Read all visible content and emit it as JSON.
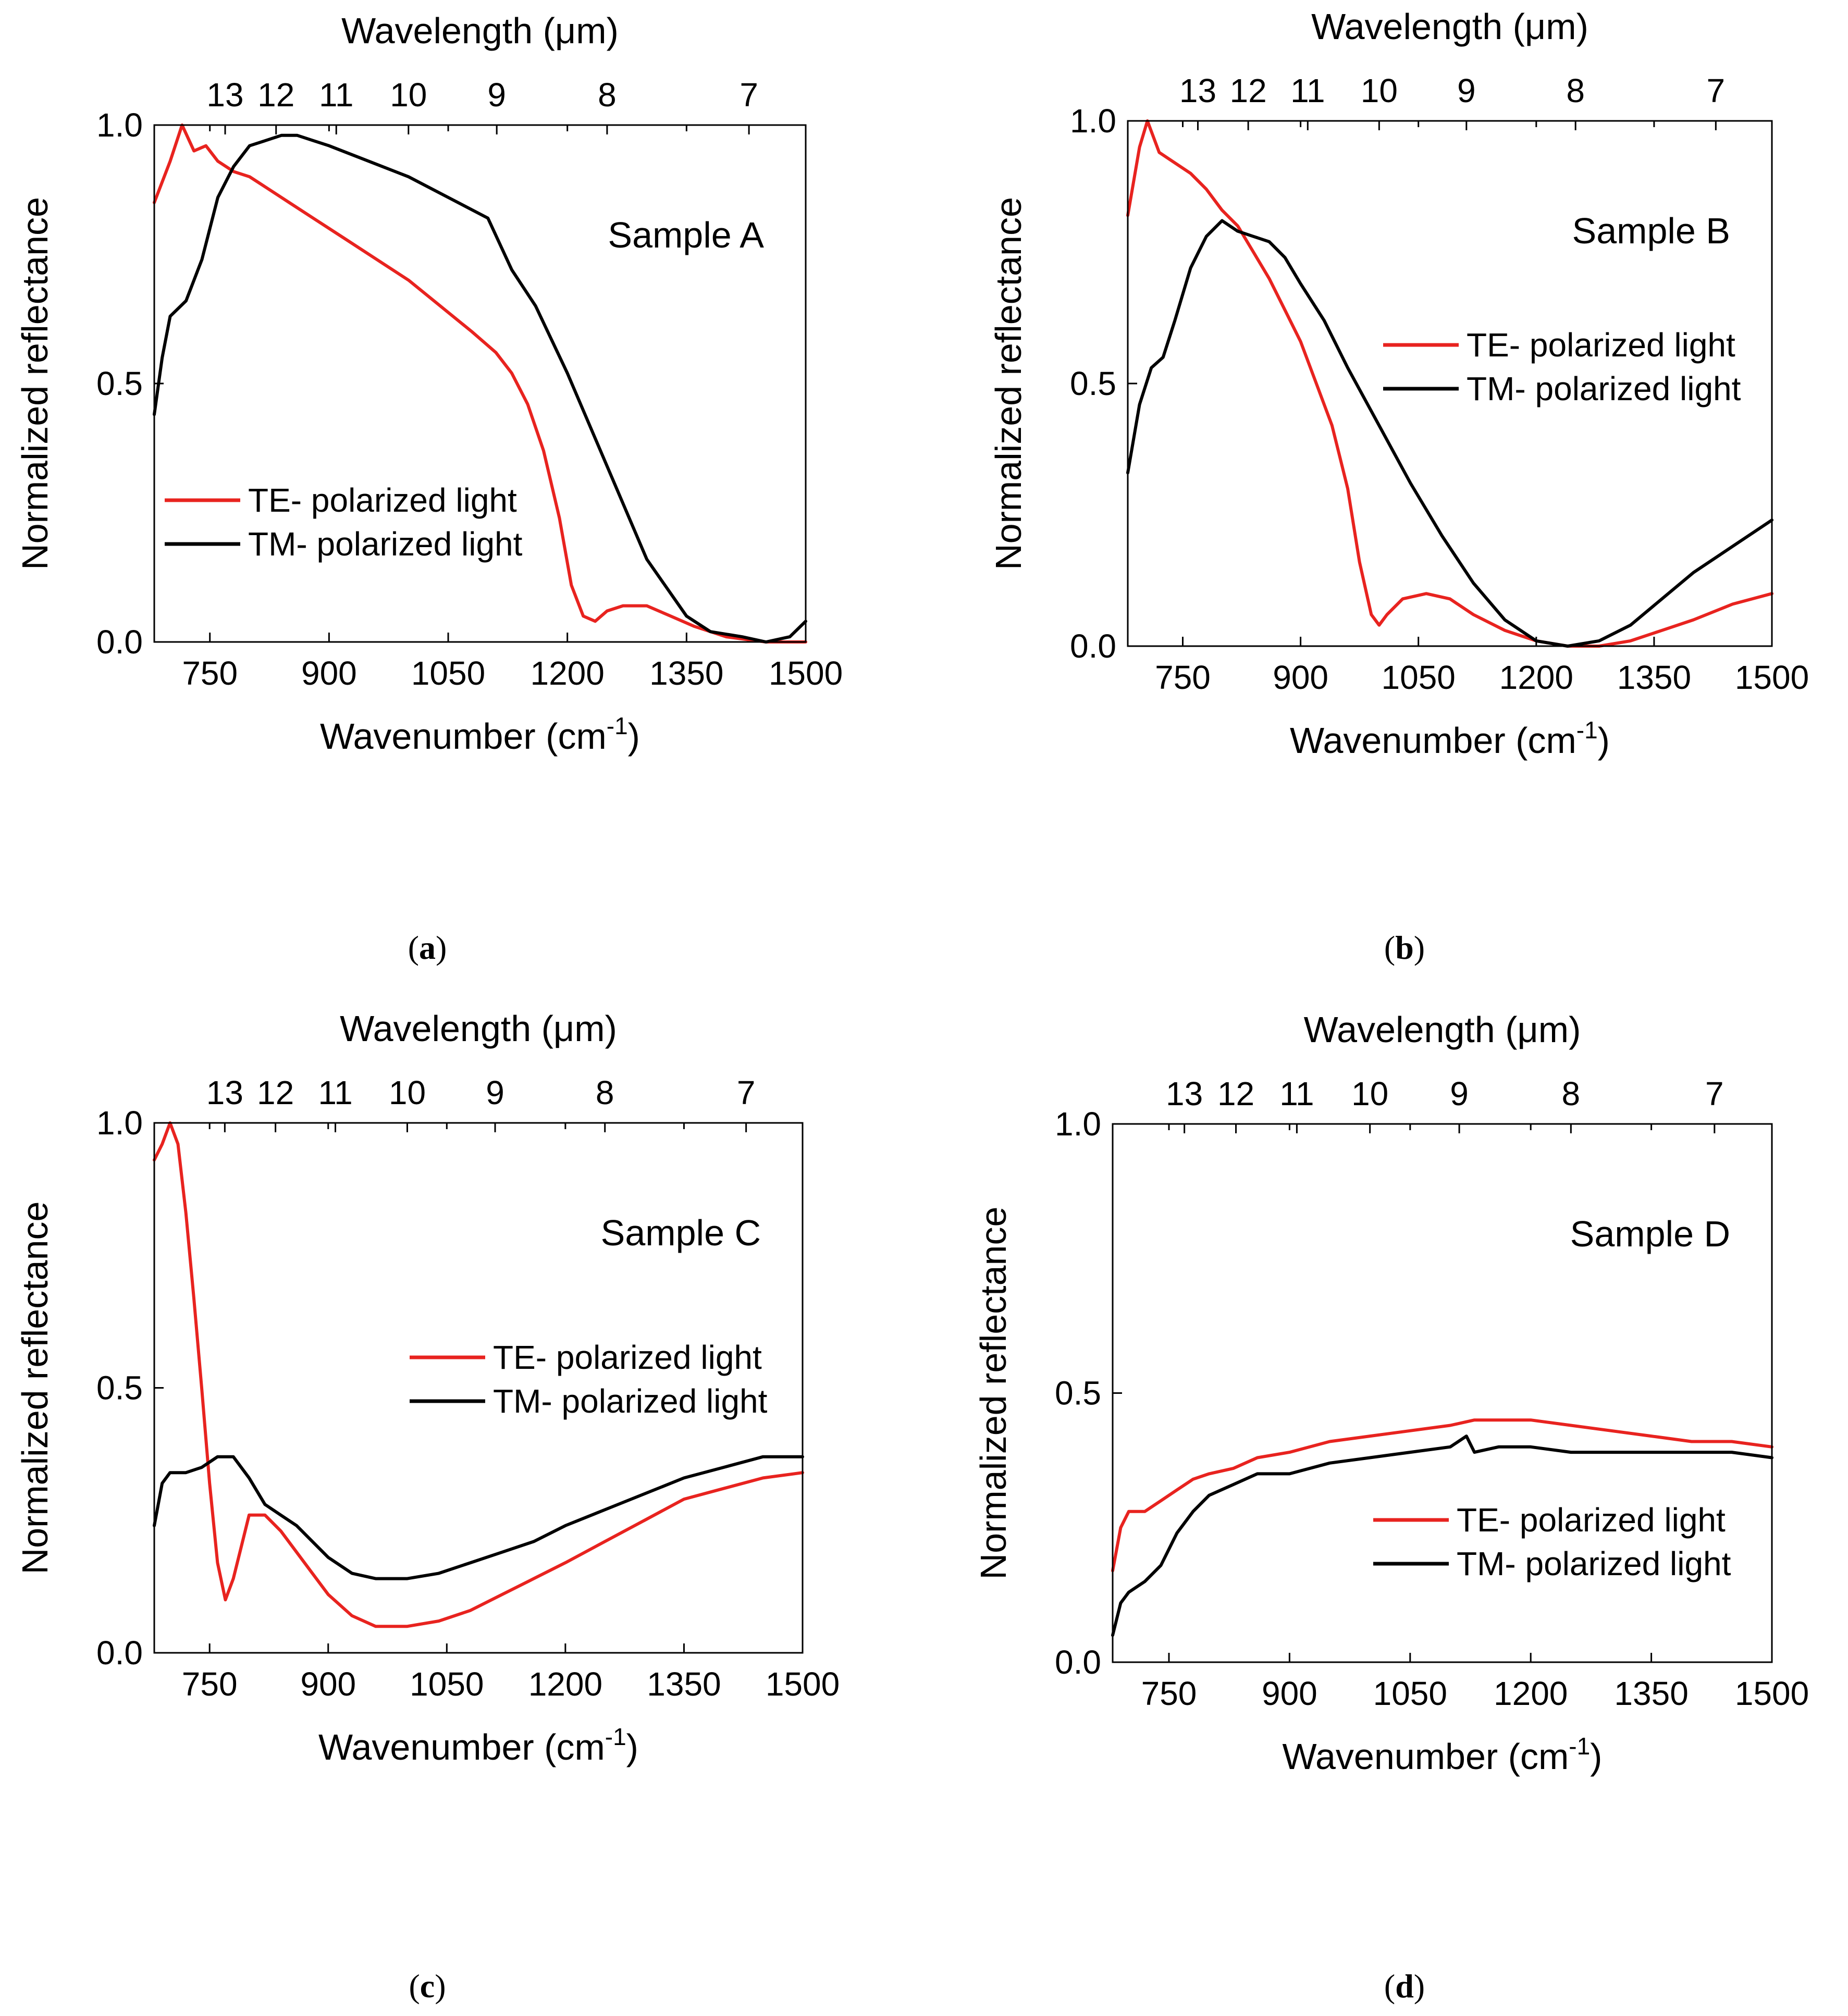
{
  "figure": {
    "captions": [
      {
        "paren_open": "(",
        "letter": "a",
        "paren_close": ")"
      },
      {
        "paren_open": "(",
        "letter": "b",
        "paren_close": ")"
      },
      {
        "paren_open": "(",
        "letter": "c",
        "paren_close": ")"
      },
      {
        "paren_open": "(",
        "letter": "d",
        "paren_close": ")"
      }
    ]
  },
  "chart_data": [
    {
      "type": "line",
      "panel": "a",
      "annotation": "Sample A",
      "xlabel": "Wavenumber (cm",
      "xlabel_sup": "-1",
      "xlabel_close": ")",
      "ylabel": "Normalized reflectance",
      "top_label": "Wavelength (μm)",
      "xlim": [
        680,
        1500
      ],
      "ylim": [
        0,
        1
      ],
      "xticks": [
        750,
        900,
        1050,
        1200,
        1350,
        1500
      ],
      "yticks": [
        "0.0",
        "0.5",
        "1.0"
      ],
      "top_ticks": [
        13,
        12,
        11,
        10,
        9,
        8,
        7
      ],
      "legend_position": "bottom-left",
      "series": [
        {
          "name": "TE- polarized light",
          "color": "#e8231f",
          "x": [
            680,
            700,
            715,
            730,
            745,
            760,
            780,
            800,
            820,
            850,
            880,
            920,
            960,
            1000,
            1040,
            1080,
            1110,
            1130,
            1150,
            1170,
            1190,
            1205,
            1220,
            1235,
            1250,
            1270,
            1300,
            1330,
            1360,
            1400,
            1450,
            1500
          ],
          "y": [
            0.85,
            0.93,
            1.0,
            0.95,
            0.96,
            0.93,
            0.91,
            0.9,
            0.88,
            0.85,
            0.82,
            0.78,
            0.74,
            0.7,
            0.65,
            0.6,
            0.56,
            0.52,
            0.46,
            0.37,
            0.24,
            0.11,
            0.05,
            0.04,
            0.06,
            0.07,
            0.07,
            0.05,
            0.03,
            0.01,
            0.0,
            0.0
          ]
        },
        {
          "name": "TM- polarized light",
          "color": "#000000",
          "x": [
            680,
            690,
            700,
            720,
            740,
            760,
            780,
            800,
            820,
            840,
            860,
            880,
            900,
            950,
            1000,
            1050,
            1100,
            1130,
            1160,
            1200,
            1250,
            1300,
            1350,
            1380,
            1420,
            1450,
            1480,
            1500
          ],
          "y": [
            0.44,
            0.55,
            0.63,
            0.66,
            0.74,
            0.86,
            0.92,
            0.96,
            0.97,
            0.98,
            0.98,
            0.97,
            0.96,
            0.93,
            0.9,
            0.86,
            0.82,
            0.72,
            0.65,
            0.52,
            0.34,
            0.16,
            0.05,
            0.02,
            0.01,
            0.0,
            0.01,
            0.04
          ]
        }
      ]
    },
    {
      "type": "line",
      "panel": "b",
      "annotation": "Sample B",
      "xlabel": "Wavenumber (cm",
      "xlabel_sup": "-1",
      "xlabel_close": ")",
      "ylabel": "Normalized reflectance",
      "top_label": "Wavelength (μm)",
      "xlim": [
        680,
        1500
      ],
      "ylim": [
        0,
        1
      ],
      "xticks": [
        750,
        900,
        1050,
        1200,
        1350,
        1500
      ],
      "yticks": [
        "0.0",
        "0.5",
        "1.0"
      ],
      "top_ticks": [
        13,
        12,
        11,
        10,
        9,
        8,
        7
      ],
      "legend_position": "middle-right",
      "series": [
        {
          "name": "TE- polarized light",
          "color": "#e8231f",
          "x": [
            680,
            695,
            705,
            720,
            740,
            760,
            780,
            800,
            820,
            840,
            860,
            880,
            900,
            920,
            940,
            960,
            975,
            990,
            1000,
            1010,
            1030,
            1060,
            1090,
            1120,
            1160,
            1200,
            1240,
            1280,
            1320,
            1360,
            1400,
            1450,
            1500
          ],
          "y": [
            0.82,
            0.95,
            1.0,
            0.94,
            0.92,
            0.9,
            0.87,
            0.83,
            0.8,
            0.75,
            0.7,
            0.64,
            0.58,
            0.5,
            0.42,
            0.3,
            0.16,
            0.06,
            0.04,
            0.06,
            0.09,
            0.1,
            0.09,
            0.06,
            0.03,
            0.01,
            0.0,
            0.0,
            0.01,
            0.03,
            0.05,
            0.08,
            0.1
          ]
        },
        {
          "name": "TM- polarized light",
          "color": "#000000",
          "x": [
            680,
            695,
            710,
            725,
            740,
            760,
            780,
            800,
            820,
            840,
            860,
            880,
            900,
            930,
            960,
            1000,
            1040,
            1080,
            1120,
            1160,
            1200,
            1240,
            1280,
            1320,
            1360,
            1400,
            1450,
            1500
          ],
          "y": [
            0.33,
            0.46,
            0.53,
            0.55,
            0.62,
            0.72,
            0.78,
            0.81,
            0.79,
            0.78,
            0.77,
            0.74,
            0.69,
            0.62,
            0.53,
            0.42,
            0.31,
            0.21,
            0.12,
            0.05,
            0.01,
            0.0,
            0.01,
            0.04,
            0.09,
            0.14,
            0.19,
            0.24
          ]
        }
      ]
    },
    {
      "type": "line",
      "panel": "c",
      "annotation": "Sample C",
      "xlabel": "Wavenumber (cm",
      "xlabel_sup": "-1",
      "xlabel_close": ")",
      "ylabel": "Normalized reflectance",
      "top_label": "Wavelength (μm)",
      "xlim": [
        680,
        1500
      ],
      "ylim": [
        0,
        1
      ],
      "xticks": [
        750,
        900,
        1050,
        1200,
        1350,
        1500
      ],
      "yticks": [
        "0.0",
        "0.5",
        "1.0"
      ],
      "top_ticks": [
        13,
        12,
        11,
        10,
        9,
        8,
        7
      ],
      "legend_position": "middle-right",
      "series": [
        {
          "name": "TE- polarized light",
          "color": "#e8231f",
          "x": [
            680,
            690,
            700,
            710,
            720,
            730,
            740,
            750,
            760,
            770,
            780,
            790,
            800,
            820,
            840,
            860,
            880,
            900,
            930,
            960,
            1000,
            1040,
            1080,
            1120,
            1160,
            1200,
            1250,
            1300,
            1350,
            1400,
            1450,
            1500
          ],
          "y": [
            0.93,
            0.96,
            1.0,
            0.96,
            0.83,
            0.67,
            0.5,
            0.32,
            0.17,
            0.1,
            0.14,
            0.2,
            0.26,
            0.26,
            0.23,
            0.19,
            0.15,
            0.11,
            0.07,
            0.05,
            0.05,
            0.06,
            0.08,
            0.11,
            0.14,
            0.17,
            0.21,
            0.25,
            0.29,
            0.31,
            0.33,
            0.34
          ]
        },
        {
          "name": "TM- polarized light",
          "color": "#000000",
          "x": [
            680,
            690,
            700,
            720,
            740,
            760,
            780,
            800,
            820,
            840,
            860,
            880,
            900,
            930,
            960,
            1000,
            1040,
            1080,
            1120,
            1160,
            1200,
            1250,
            1300,
            1350,
            1400,
            1450,
            1500
          ],
          "y": [
            0.24,
            0.32,
            0.34,
            0.34,
            0.35,
            0.37,
            0.37,
            0.33,
            0.28,
            0.26,
            0.24,
            0.21,
            0.18,
            0.15,
            0.14,
            0.14,
            0.15,
            0.17,
            0.19,
            0.21,
            0.24,
            0.27,
            0.3,
            0.33,
            0.35,
            0.37,
            0.37
          ]
        }
      ]
    },
    {
      "type": "line",
      "panel": "d",
      "annotation": "Sample D",
      "xlabel": "Wavenumber (cm",
      "xlabel_sup": "-1",
      "xlabel_close": ")",
      "ylabel": "Normalized reflectance",
      "top_label": "Wavelength (μm)",
      "xlim": [
        680,
        1500
      ],
      "ylim": [
        0,
        1
      ],
      "xticks": [
        750,
        900,
        1050,
        1200,
        1350,
        1500
      ],
      "yticks": [
        "0.0",
        "0.5",
        "1.0"
      ],
      "top_ticks": [
        13,
        12,
        11,
        10,
        9,
        8,
        7
      ],
      "legend_position": "bottom-right",
      "series": [
        {
          "name": "TE- polarized light",
          "color": "#e8231f",
          "x": [
            680,
            690,
            700,
            720,
            740,
            760,
            780,
            800,
            830,
            860,
            900,
            950,
            1000,
            1050,
            1100,
            1130,
            1160,
            1200,
            1250,
            1300,
            1350,
            1400,
            1450,
            1500
          ],
          "y": [
            0.17,
            0.25,
            0.28,
            0.28,
            0.3,
            0.32,
            0.34,
            0.35,
            0.36,
            0.38,
            0.39,
            0.41,
            0.42,
            0.43,
            0.44,
            0.45,
            0.45,
            0.45,
            0.44,
            0.43,
            0.42,
            0.41,
            0.41,
            0.4
          ]
        },
        {
          "name": "TM- polarized light",
          "color": "#000000",
          "x": [
            680,
            690,
            700,
            720,
            740,
            760,
            780,
            800,
            830,
            860,
            900,
            950,
            1000,
            1050,
            1100,
            1120,
            1130,
            1160,
            1200,
            1250,
            1300,
            1350,
            1400,
            1450,
            1500
          ],
          "y": [
            0.05,
            0.11,
            0.13,
            0.15,
            0.18,
            0.24,
            0.28,
            0.31,
            0.33,
            0.35,
            0.35,
            0.37,
            0.38,
            0.39,
            0.4,
            0.42,
            0.39,
            0.4,
            0.4,
            0.39,
            0.39,
            0.39,
            0.39,
            0.39,
            0.38
          ]
        }
      ]
    }
  ]
}
